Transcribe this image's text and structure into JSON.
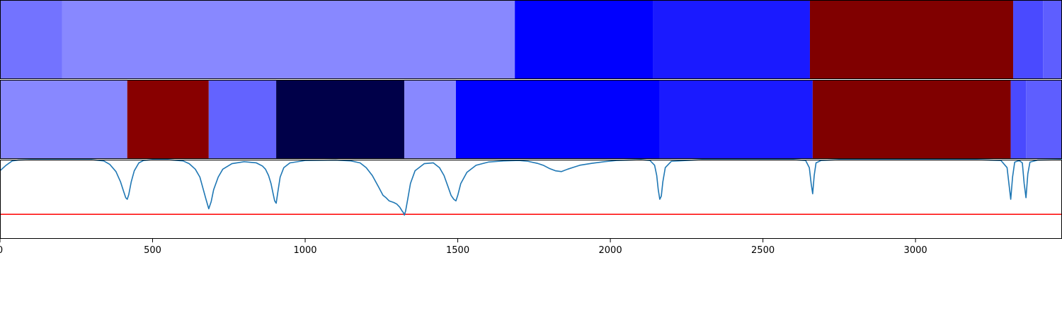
{
  "chart_data": {
    "type": "heatmap",
    "title": "",
    "xlabel": "",
    "ylabel": "",
    "xlim": [
      0,
      3480
    ],
    "x_ticks": [
      {
        "value": 0,
        "label": "0"
      },
      {
        "value": 500,
        "label": "500"
      },
      {
        "value": 1000,
        "label": "1000"
      },
      {
        "value": 1500,
        "label": "1500"
      },
      {
        "value": 2000,
        "label": "2000"
      },
      {
        "value": 2500,
        "label": "2500"
      },
      {
        "value": 3000,
        "label": "3000"
      }
    ],
    "colorbar_rows": [
      {
        "segments": [
          {
            "start": 0,
            "end": 203,
            "color": "#7373ff"
          },
          {
            "start": 203,
            "end": 1687,
            "color": "#8888ff"
          },
          {
            "start": 1687,
            "end": 2140,
            "color": "#0000ff"
          },
          {
            "start": 2140,
            "end": 2654,
            "color": "#1a1aff"
          },
          {
            "start": 2654,
            "end": 3320,
            "color": "#800000"
          },
          {
            "start": 3320,
            "end": 3418,
            "color": "#4a4aff"
          },
          {
            "start": 3418,
            "end": 3480,
            "color": "#5e5eff"
          }
        ]
      },
      {
        "segments": [
          {
            "start": 0,
            "end": 417,
            "color": "#8888ff"
          },
          {
            "start": 417,
            "end": 684,
            "color": "#880000"
          },
          {
            "start": 684,
            "end": 905,
            "color": "#6363ff"
          },
          {
            "start": 905,
            "end": 1325,
            "color": "#000049"
          },
          {
            "start": 1325,
            "end": 1494,
            "color": "#8888ff"
          },
          {
            "start": 1494,
            "end": 2162,
            "color": "#0000ff"
          },
          {
            "start": 2162,
            "end": 2663,
            "color": "#1a1aff"
          },
          {
            "start": 2663,
            "end": 3312,
            "color": "#800000"
          },
          {
            "start": 3312,
            "end": 3362,
            "color": "#4a4aff"
          },
          {
            "start": 3362,
            "end": 3480,
            "color": "#5e5eff"
          }
        ]
      }
    ],
    "line_plot": {
      "ylim": [
        0,
        1
      ],
      "threshold": 0.31,
      "threshold_color": "#ff0000",
      "line_color": "#1f77b4",
      "series": [
        {
          "x": [
            0,
            20,
            40,
            60,
            100,
            200,
            300,
            340,
            360,
            380,
            395,
            405,
            412,
            417,
            422,
            430,
            440,
            455,
            470,
            500,
            550,
            600,
            620,
            640,
            655,
            665,
            675,
            684,
            692,
            700,
            715,
            730,
            760,
            800,
            840,
            860,
            870,
            880,
            888,
            895,
            900,
            905,
            910,
            918,
            930,
            950,
            1000,
            1100,
            1150,
            1180,
            1200,
            1220,
            1240,
            1255,
            1265,
            1275,
            1290,
            1300,
            1310,
            1318,
            1322,
            1325,
            1329,
            1336,
            1345,
            1360,
            1390,
            1420,
            1440,
            1455,
            1468,
            1478,
            1487,
            1494,
            1500,
            1510,
            1530,
            1560,
            1600,
            1650,
            1700,
            1730,
            1760,
            1780,
            1800,
            1820,
            1840,
            1860,
            1880,
            1900,
            1940,
            1980,
            2020,
            2060,
            2100,
            2130,
            2145,
            2152,
            2157,
            2162,
            2167,
            2172,
            2180,
            2200,
            2300,
            2400,
            2500,
            2600,
            2640,
            2652,
            2658,
            2663,
            2668,
            2674,
            2690,
            2750,
            2900,
            3000,
            3100,
            3200,
            3280,
            3300,
            3306,
            3312,
            3318,
            3325,
            3340,
            3350,
            3356,
            3362,
            3368,
            3375,
            3400,
            3480
          ],
          "y": [
            0.86,
            0.93,
            0.985,
            0.995,
            1.0,
            1.0,
            1.0,
            0.985,
            0.94,
            0.85,
            0.72,
            0.6,
            0.52,
            0.5,
            0.56,
            0.72,
            0.86,
            0.96,
            0.99,
            1.0,
            1.0,
            0.985,
            0.95,
            0.88,
            0.78,
            0.64,
            0.5,
            0.38,
            0.47,
            0.62,
            0.78,
            0.88,
            0.95,
            0.975,
            0.96,
            0.92,
            0.88,
            0.8,
            0.7,
            0.57,
            0.48,
            0.45,
            0.58,
            0.78,
            0.9,
            0.96,
            0.99,
            0.995,
            0.985,
            0.96,
            0.9,
            0.8,
            0.66,
            0.55,
            0.52,
            0.48,
            0.46,
            0.44,
            0.4,
            0.35,
            0.33,
            0.3,
            0.35,
            0.5,
            0.7,
            0.86,
            0.95,
            0.96,
            0.9,
            0.8,
            0.66,
            0.55,
            0.5,
            0.48,
            0.55,
            0.7,
            0.84,
            0.93,
            0.97,
            0.985,
            0.99,
            0.98,
            0.955,
            0.93,
            0.89,
            0.86,
            0.85,
            0.88,
            0.905,
            0.93,
            0.955,
            0.975,
            0.99,
            0.995,
            1.0,
            0.99,
            0.93,
            0.8,
            0.62,
            0.5,
            0.54,
            0.72,
            0.9,
            0.98,
            1.0,
            1.0,
            1.0,
            1.0,
            0.99,
            0.9,
            0.7,
            0.57,
            0.8,
            0.96,
            0.99,
            1.0,
            1.0,
            1.0,
            1.0,
            1.0,
            0.99,
            0.9,
            0.7,
            0.5,
            0.78,
            0.97,
            0.99,
            0.96,
            0.7,
            0.52,
            0.82,
            0.97,
            0.995,
            1.0
          ]
        }
      ]
    }
  }
}
